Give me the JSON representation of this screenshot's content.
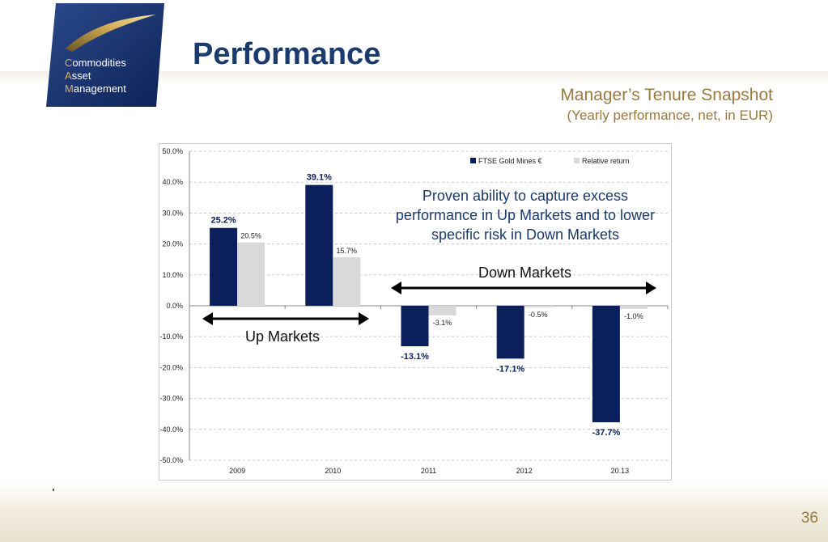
{
  "header": {
    "title": "Performance",
    "subtitle": "Manager’s Tenure Snapshot",
    "subtitle_detail": "(Yearly performance, net, in EUR)"
  },
  "logo": {
    "line1_initial": "C",
    "line1_rest": "ommodities",
    "line2_initial": "A",
    "line2_rest": "sset",
    "line3_initial": "M",
    "line3_rest": "anagement"
  },
  "callout": "Proven ability to capture excess performance in Up Markets and to lower specific risk in Down Markets",
  "annotations": {
    "down_markets": "Down Markets",
    "up_markets": "Up Markets"
  },
  "page_number": "36",
  "colors": {
    "navy": "#0a1f5c",
    "light_gray": "#d9d9d9",
    "title_blue": "#1b3a6e",
    "gold": "#9a7a3d"
  },
  "chart_data": {
    "type": "bar",
    "categories": [
      "2009",
      "2010",
      "2011",
      "2012",
      "20.13"
    ],
    "series": [
      {
        "name": "FTSE Gold Mines €",
        "values": [
          25.2,
          39.1,
          -13.1,
          -17.1,
          -37.7
        ],
        "labels": [
          "25.2%",
          "39.1%",
          "-13.1%",
          "-17.1%",
          "-37.7%"
        ],
        "color": "#0a1f5c"
      },
      {
        "name": "Relative return",
        "values": [
          20.5,
          15.7,
          -3.1,
          -0.5,
          -1.0
        ],
        "labels": [
          "20.5%",
          "15.7%",
          "-3.1%",
          "-0.5%",
          "-1.0%"
        ],
        "color": "#d9d9d9"
      }
    ],
    "ylim": [
      -50,
      50
    ],
    "yticks": [
      50,
      40,
      30,
      20,
      10,
      0,
      -10,
      -20,
      -30,
      -40,
      -50
    ],
    "ytick_labels": [
      "50.0%",
      "40.0%",
      "30.0%",
      "20.0%",
      "10.0%",
      "0.0%",
      "-10.0%",
      "-20.0%",
      "-30.0%",
      "-40.0%",
      "-50.0%"
    ],
    "grid": true,
    "legend_position": "top-right"
  }
}
